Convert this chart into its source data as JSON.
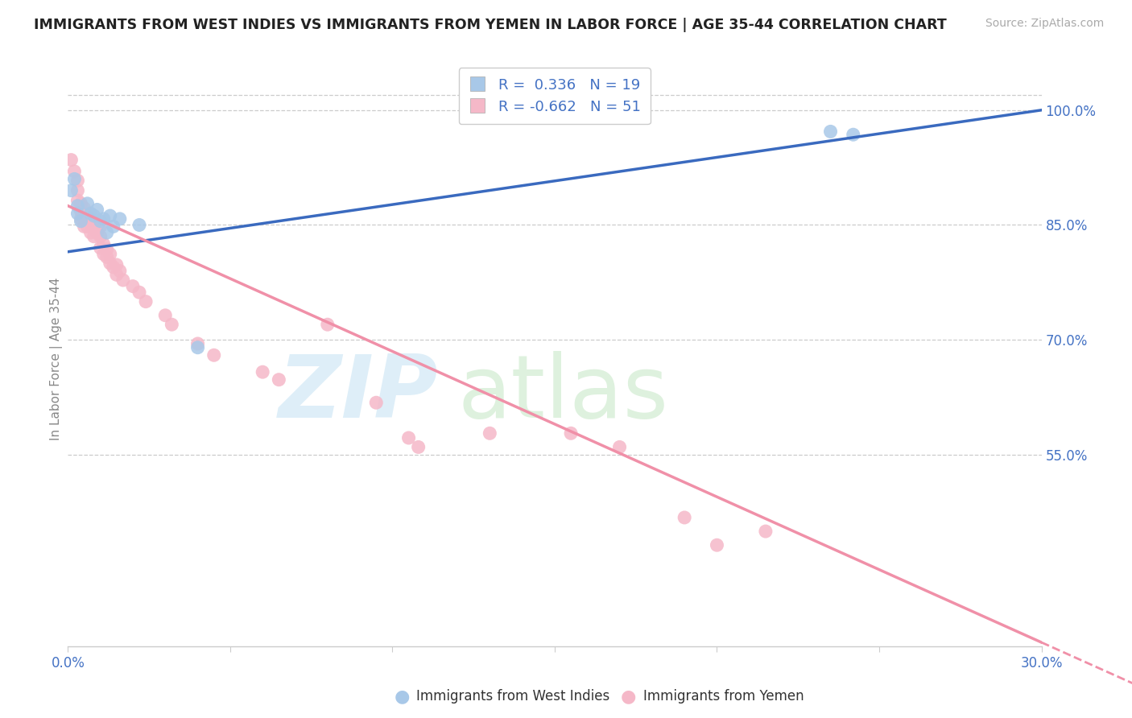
{
  "title": "IMMIGRANTS FROM WEST INDIES VS IMMIGRANTS FROM YEMEN IN LABOR FORCE | AGE 35-44 CORRELATION CHART",
  "source": "Source: ZipAtlas.com",
  "ylabel": "In Labor Force | Age 35-44",
  "xlim": [
    0.0,
    0.3
  ],
  "ylim": [
    0.3,
    1.05
  ],
  "ytick_vals": [
    0.55,
    0.7,
    0.85,
    1.0
  ],
  "ytick_labels": [
    "55.0%",
    "70.0%",
    "85.0%",
    "100.0%"
  ],
  "xtick_vals": [
    0.0,
    0.05,
    0.1,
    0.15,
    0.2,
    0.25,
    0.3
  ],
  "xtick_labels": [
    "0.0%",
    "",
    "",
    "",
    "",
    "",
    "30.0%"
  ],
  "west_indies_color": "#a8c8e8",
  "yemen_color": "#f5b8c8",
  "west_indies_line_color": "#3a6abf",
  "yemen_line_color": "#f090a8",
  "R_wi": "0.336",
  "N_wi": "19",
  "R_ym": "-0.662",
  "N_ym": "51",
  "wi_line_x0": 0.0,
  "wi_line_y0": 0.815,
  "wi_line_x1": 0.3,
  "wi_line_y1": 1.0,
  "ym_line_x0": 0.0,
  "ym_line_y0": 0.875,
  "ym_line_x1": 0.3,
  "ym_line_y1": 0.305,
  "west_indies_points_x": [
    0.001,
    0.002,
    0.003,
    0.003,
    0.004,
    0.006,
    0.007,
    0.008,
    0.009,
    0.01,
    0.011,
    0.012,
    0.013,
    0.014,
    0.016,
    0.022,
    0.04,
    0.235,
    0.242
  ],
  "west_indies_points_y": [
    0.895,
    0.91,
    0.875,
    0.865,
    0.855,
    0.878,
    0.865,
    0.862,
    0.87,
    0.855,
    0.858,
    0.84,
    0.862,
    0.848,
    0.858,
    0.85,
    0.69,
    0.972,
    0.968
  ],
  "yemen_points_x": [
    0.001,
    0.002,
    0.003,
    0.003,
    0.003,
    0.004,
    0.004,
    0.004,
    0.005,
    0.005,
    0.005,
    0.006,
    0.006,
    0.007,
    0.007,
    0.008,
    0.008,
    0.009,
    0.01,
    0.01,
    0.01,
    0.011,
    0.011,
    0.012,
    0.012,
    0.013,
    0.013,
    0.014,
    0.015,
    0.015,
    0.016,
    0.017,
    0.02,
    0.022,
    0.024,
    0.03,
    0.032,
    0.04,
    0.045,
    0.06,
    0.065,
    0.08,
    0.095,
    0.105,
    0.108,
    0.13,
    0.155,
    0.17,
    0.19,
    0.2,
    0.215
  ],
  "yemen_points_y": [
    0.935,
    0.92,
    0.908,
    0.895,
    0.882,
    0.878,
    0.868,
    0.858,
    0.872,
    0.86,
    0.848,
    0.862,
    0.848,
    0.858,
    0.84,
    0.85,
    0.835,
    0.84,
    0.848,
    0.835,
    0.82,
    0.825,
    0.812,
    0.818,
    0.808,
    0.812,
    0.8,
    0.795,
    0.798,
    0.785,
    0.79,
    0.778,
    0.77,
    0.762,
    0.75,
    0.732,
    0.72,
    0.695,
    0.68,
    0.658,
    0.648,
    0.72,
    0.618,
    0.572,
    0.56,
    0.578,
    0.578,
    0.56,
    0.468,
    0.432,
    0.45
  ]
}
